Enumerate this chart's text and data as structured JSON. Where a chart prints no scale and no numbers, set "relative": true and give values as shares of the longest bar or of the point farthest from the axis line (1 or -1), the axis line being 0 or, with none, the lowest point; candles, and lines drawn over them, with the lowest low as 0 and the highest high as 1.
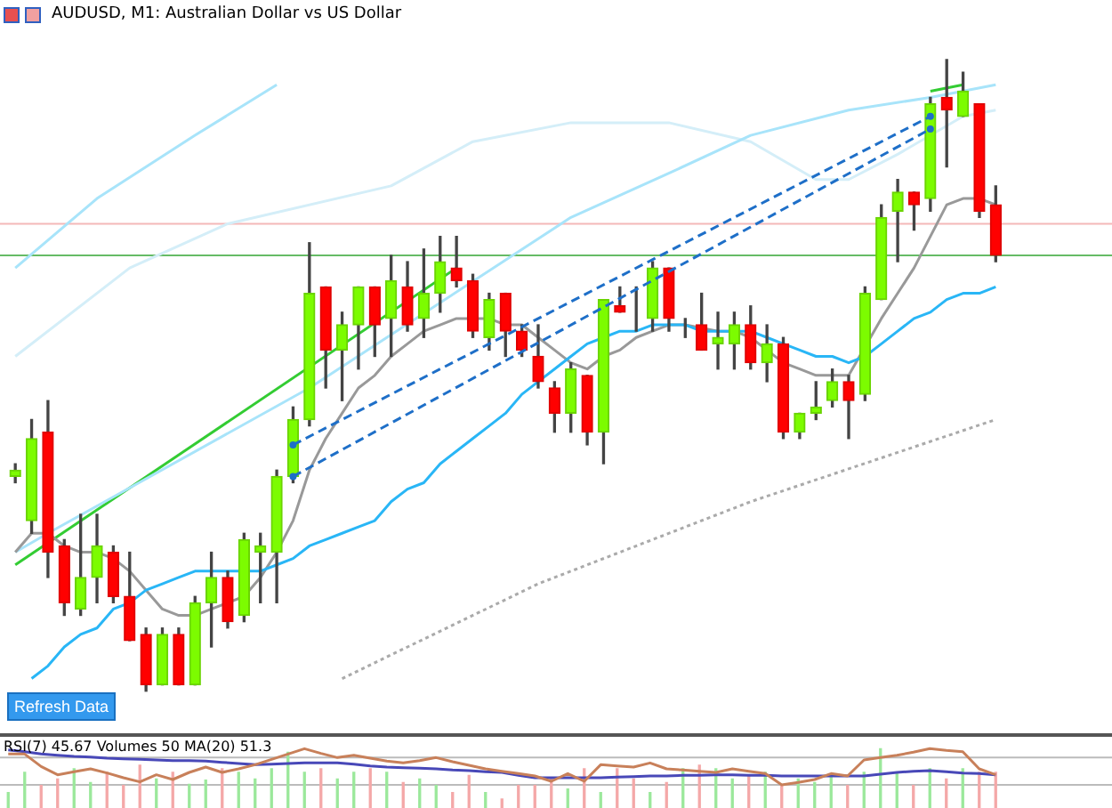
{
  "chart_data": [
    {
      "type": "candlestick",
      "title": "AUDUSD, M1:  Australian Dollar vs US Dollar",
      "relative": true,
      "tick_labels": false,
      "legend": false,
      "grid": false,
      "categories": [
        null,
        null,
        null,
        null,
        null,
        null,
        null,
        null,
        null,
        null,
        null,
        null,
        null,
        null,
        null,
        null,
        null,
        null,
        null,
        null,
        null,
        null,
        null,
        null,
        null,
        null,
        null,
        null,
        null,
        null,
        null,
        null,
        null,
        null,
        null,
        null,
        null,
        null,
        null,
        null,
        null,
        null,
        null,
        null,
        null,
        null,
        null,
        null,
        null,
        null,
        null,
        null,
        null,
        null,
        null,
        null,
        null,
        null,
        null,
        null,
        null
      ],
      "ohlc": [
        [
          0.34,
          0.36,
          0.33,
          0.35
        ],
        [
          0.27,
          0.43,
          0.25,
          0.4
        ],
        [
          0.41,
          0.46,
          0.18,
          0.22
        ],
        [
          0.23,
          0.24,
          0.12,
          0.14
        ],
        [
          0.13,
          0.28,
          0.12,
          0.18
        ],
        [
          0.18,
          0.28,
          0.14,
          0.23
        ],
        [
          0.22,
          0.23,
          0.14,
          0.15
        ],
        [
          0.15,
          0.22,
          0.08,
          0.08
        ],
        [
          0.09,
          0.1,
          0,
          0.01
        ],
        [
          0.01,
          0.1,
          0.01,
          0.09
        ],
        [
          0.09,
          0.1,
          0.01,
          0.01
        ],
        [
          0.01,
          0.15,
          0.01,
          0.14
        ],
        [
          0.14,
          0.22,
          0.07,
          0.18
        ],
        [
          0.18,
          0.19,
          0.1,
          0.11
        ],
        [
          0.12,
          0.25,
          0.11,
          0.24
        ],
        [
          0.22,
          0.25,
          0.14,
          0.23
        ],
        [
          0.22,
          0.35,
          0.14,
          0.34
        ],
        [
          0.34,
          0.45,
          0.33,
          0.43
        ],
        [
          0.43,
          0.71,
          0.42,
          0.63
        ],
        [
          0.64,
          0.64,
          0.48,
          0.54
        ],
        [
          0.54,
          0.6,
          0.46,
          0.58
        ],
        [
          0.58,
          0.64,
          0.51,
          0.64
        ],
        [
          0.64,
          0.64,
          0.53,
          0.58
        ],
        [
          0.59,
          0.69,
          0.53,
          0.65
        ],
        [
          0.64,
          0.68,
          0.57,
          0.58
        ],
        [
          0.59,
          0.7,
          0.56,
          0.63
        ],
        [
          0.63,
          0.72,
          0.6,
          0.68
        ],
        [
          0.67,
          0.72,
          0.64,
          0.65
        ],
        [
          0.65,
          0.66,
          0.56,
          0.57
        ],
        [
          0.56,
          0.63,
          0.54,
          0.62
        ],
        [
          0.63,
          0.63,
          0.53,
          0.57
        ],
        [
          0.57,
          0.58,
          0.53,
          0.54
        ],
        [
          0.53,
          0.58,
          0.48,
          0.49
        ],
        [
          0.48,
          0.49,
          0.41,
          0.44
        ],
        [
          0.44,
          0.52,
          0.41,
          0.51
        ],
        [
          0.5,
          0.5,
          0.39,
          0.41
        ],
        [
          0.41,
          0.62,
          0.36,
          0.62
        ],
        [
          0.61,
          0.64,
          0.6,
          0.6
        ],
        [
          0.6,
          0.64,
          0.57,
          0.6
        ],
        [
          0.59,
          0.68,
          0.57,
          0.67
        ],
        [
          0.67,
          0.67,
          0.57,
          0.59
        ],
        [
          0.58,
          0.59,
          0.56,
          0.58
        ],
        [
          0.58,
          0.63,
          0.54,
          0.54
        ],
        [
          0.55,
          0.6,
          0.51,
          0.56
        ],
        [
          0.55,
          0.6,
          0.51,
          0.58
        ],
        [
          0.58,
          0.61,
          0.51,
          0.52
        ],
        [
          0.52,
          0.58,
          0.49,
          0.55
        ],
        [
          0.55,
          0.56,
          0.4,
          0.41
        ],
        [
          0.41,
          0.44,
          0.4,
          0.44
        ],
        [
          0.44,
          0.49,
          0.43,
          0.45
        ],
        [
          0.46,
          0.51,
          0.45,
          0.49
        ],
        [
          0.49,
          0.5,
          0.4,
          0.46
        ],
        [
          0.47,
          0.64,
          0.46,
          0.63
        ],
        [
          0.62,
          0.77,
          0.62,
          0.75
        ],
        [
          0.76,
          0.81,
          0.68,
          0.79
        ],
        [
          0.79,
          0.79,
          0.73,
          0.77
        ],
        [
          0.78,
          0.94,
          0.76,
          0.93
        ],
        [
          0.94,
          1.0,
          0.83,
          0.92
        ],
        [
          0.91,
          0.98,
          0.91,
          0.95
        ],
        [
          0.93,
          0.93,
          0.75,
          0.76
        ],
        [
          0.77,
          0.8,
          0.68,
          0.69
        ]
      ],
      "series": [
        {
          "type": "line",
          "color": "#29b6f6",
          "values": [
            null,
            0.02,
            0.04,
            0.07,
            0.09,
            0.1,
            0.13,
            0.14,
            0.16,
            0.17,
            0.18,
            0.19,
            0.19,
            0.19,
            0.19,
            0.19,
            0.2,
            0.21,
            0.23,
            0.24,
            0.25,
            0.26,
            0.27,
            0.3,
            0.32,
            0.33,
            0.36,
            0.38,
            0.4,
            0.42,
            0.44,
            0.47,
            0.49,
            0.51,
            0.53,
            0.55,
            0.56,
            0.57,
            0.57,
            0.58,
            0.58,
            0.58,
            0.57,
            0.57,
            0.57,
            0.57,
            0.56,
            0.55,
            0.54,
            0.53,
            0.53,
            0.52,
            0.53,
            0.55,
            0.57,
            0.59,
            0.6,
            0.62,
            0.63,
            0.63,
            0.64
          ]
        },
        {
          "type": "line",
          "color": "#999999",
          "values": [
            0.22,
            0.25,
            0.25,
            0.23,
            0.22,
            0.22,
            0.21,
            0.19,
            0.16,
            0.13,
            0.12,
            0.12,
            0.13,
            0.14,
            0.15,
            0.18,
            0.22,
            0.27,
            0.35,
            0.4,
            0.44,
            0.48,
            0.5,
            0.53,
            0.55,
            0.57,
            0.58,
            0.59,
            0.59,
            0.59,
            0.58,
            0.58,
            0.56,
            0.54,
            0.52,
            0.51,
            0.53,
            0.54,
            0.56,
            0.57,
            0.58,
            0.58,
            null,
            0.57,
            0.57,
            0.56,
            0.54,
            0.52,
            0.51,
            0.5,
            0.5,
            0.5,
            null,
            0.59,
            0.63,
            0.67,
            0.72,
            0.77,
            0.78,
            0.78,
            0.77
          ]
        },
        {
          "type": "line",
          "color": "#a8e4fa",
          "values": [
            0.22,
            null,
            0.25,
            null,
            null,
            null,
            null,
            null,
            null,
            null,
            null,
            null,
            null,
            null,
            null,
            null,
            null,
            null,
            0.48,
            null,
            null,
            null,
            null,
            null,
            null,
            null,
            null,
            null,
            null,
            null,
            null,
            null,
            null,
            null,
            0.75,
            null,
            null,
            null,
            null,
            null,
            0.82,
            null,
            null,
            null,
            null,
            0.88,
            null,
            null,
            null,
            null,
            null,
            0.92,
            null,
            null,
            null,
            null,
            0.94,
            null,
            null,
            null,
            0.96
          ]
        },
        {
          "type": "line",
          "color": "#d4eef8",
          "values": [
            0.53,
            null,
            null,
            null,
            null,
            null,
            null,
            0.67,
            null,
            null,
            null,
            null,
            null,
            0.74,
            null,
            null,
            null,
            null,
            null,
            null,
            null,
            null,
            null,
            0.8,
            null,
            null,
            null,
            null,
            0.87,
            null,
            null,
            null,
            null,
            null,
            0.9,
            null,
            null,
            null,
            null,
            null,
            0.9,
            null,
            null,
            null,
            null,
            0.87,
            null,
            null,
            null,
            0.81,
            null,
            0.81,
            null,
            null,
            0.85,
            null,
            null,
            null,
            0.91,
            null,
            0.92
          ]
        },
        {
          "type": "line",
          "color": "#a8e4fa",
          "values": [
            0.67,
            null,
            null,
            null,
            null,
            0.78,
            null,
            null,
            null,
            null,
            null,
            0.88,
            null,
            null,
            null,
            null,
            0.96,
            null,
            null,
            null,
            null,
            null,
            null,
            null,
            null,
            null,
            null,
            null,
            null,
            null,
            null,
            null,
            null,
            null,
            null,
            null,
            null,
            null,
            null,
            null,
            null,
            null,
            null,
            null,
            null,
            null,
            null,
            null,
            null,
            null,
            null,
            null,
            null,
            null,
            null,
            null,
            null,
            null,
            null,
            null,
            null
          ]
        },
        {
          "type": "line",
          "color": "#aaaaaa",
          "line_style": "dotted",
          "values": [
            null,
            null,
            null,
            null,
            null,
            null,
            null,
            null,
            null,
            null,
            null,
            null,
            null,
            null,
            null,
            null,
            null,
            null,
            null,
            null,
            0.02,
            null,
            null,
            null,
            null,
            null,
            null,
            null,
            null,
            null,
            null,
            null,
            0.17,
            null,
            null,
            null,
            null,
            null,
            null,
            null,
            null,
            null,
            null,
            null,
            null,
            0.3,
            null,
            null,
            null,
            null,
            null,
            null,
            null,
            null,
            null,
            null,
            null,
            null,
            null,
            null,
            0.43
          ]
        },
        {
          "type": "line",
          "color": "#33cc33",
          "values": [
            0.2,
            null,
            null,
            null,
            null,
            null,
            null,
            null,
            null,
            null,
            null,
            null,
            null,
            null,
            null,
            null,
            null,
            null,
            null,
            null,
            null,
            null,
            null,
            null,
            null,
            null,
            null,
            0.67,
            null,
            null,
            null,
            null,
            null,
            null,
            null,
            null,
            null,
            null,
            null,
            null,
            null,
            null,
            null,
            null,
            null,
            null,
            null,
            null,
            null,
            null,
            null,
            null,
            null,
            null,
            null,
            null,
            null,
            null,
            null,
            null,
            null
          ]
        },
        {
          "type": "line",
          "color": "#33cc33",
          "values": [
            null,
            null,
            null,
            null,
            null,
            null,
            null,
            null,
            null,
            null,
            null,
            null,
            null,
            null,
            null,
            null,
            null,
            null,
            null,
            null,
            null,
            null,
            null,
            null,
            null,
            null,
            null,
            null,
            null,
            null,
            null,
            null,
            null,
            null,
            null,
            null,
            null,
            null,
            null,
            null,
            null,
            null,
            null,
            null,
            null,
            null,
            null,
            null,
            null,
            null,
            null,
            null,
            null,
            null,
            null,
            null,
            0.95,
            null,
            0.96,
            null,
            null
          ]
        },
        {
          "type": "line",
          "color": "#1e6fc8",
          "line_style": "dashed",
          "marker": "circle",
          "values": [
            null,
            null,
            null,
            null,
            null,
            null,
            null,
            null,
            null,
            null,
            null,
            null,
            null,
            null,
            null,
            null,
            null,
            0.39,
            null,
            null,
            null,
            null,
            null,
            null,
            null,
            null,
            null,
            null,
            null,
            null,
            null,
            null,
            null,
            null,
            null,
            null,
            null,
            null,
            null,
            null,
            null,
            null,
            null,
            null,
            null,
            null,
            null,
            null,
            null,
            null,
            null,
            null,
            null,
            null,
            null,
            null,
            0.91,
            null,
            null,
            null,
            null
          ]
        },
        {
          "type": "line",
          "color": "#1e6fc8",
          "line_style": "dashed",
          "marker": "circle",
          "values": [
            null,
            null,
            null,
            null,
            null,
            null,
            null,
            null,
            null,
            null,
            null,
            null,
            null,
            null,
            null,
            null,
            null,
            0.34,
            null,
            null,
            null,
            null,
            null,
            null,
            null,
            null,
            null,
            null,
            null,
            null,
            null,
            null,
            null,
            null,
            null,
            null,
            null,
            null,
            null,
            null,
            null,
            null,
            null,
            null,
            null,
            null,
            null,
            null,
            null,
            null,
            null,
            null,
            null,
            null,
            null,
            null,
            0.89,
            null,
            null,
            null,
            null
          ]
        }
      ],
      "ref_lines": [
        {
          "axis": "y",
          "value": 0.74,
          "color": "#f4b8b8"
        },
        {
          "axis": "y",
          "value": 0.69,
          "color": "#66bb66"
        }
      ],
      "annotations": [
        "Refresh Data"
      ]
    },
    {
      "type": "line",
      "title": "RSI(7) 45.67 Volumes 50 MA(20) 51.3",
      "relative": true,
      "tick_labels": false,
      "legend": false,
      "grid": false,
      "categories": [
        null,
        null,
        null,
        null,
        null,
        null,
        null,
        null,
        null,
        null,
        null,
        null,
        null,
        null,
        null,
        null,
        null,
        null,
        null,
        null,
        null,
        null,
        null,
        null,
        null,
        null,
        null,
        null,
        null,
        null,
        null,
        null,
        null,
        null,
        null,
        null,
        null,
        null,
        null,
        null,
        null,
        null,
        null,
        null,
        null,
        null,
        null,
        null,
        null,
        null,
        null,
        null,
        null,
        null,
        null,
        null,
        null,
        null,
        null,
        null,
        null
      ],
      "series": [
        {
          "type": "bar",
          "colors": [
            "#9be89b",
            "#9be89b",
            "#f4a8a8",
            "#f4a8a8",
            "#9be89b",
            "#9be89b",
            "#f4a8a8",
            "#f4a8a8",
            "#f4a8a8",
            "#9be89b",
            "#f4a8a8",
            "#9be89b",
            "#9be89b",
            "#f4a8a8",
            "#9be89b",
            "#9be89b",
            "#9be89b",
            "#9be89b",
            "#9be89b",
            "#f4a8a8",
            "#9be89b",
            "#9be89b",
            "#f4a8a8",
            "#9be89b",
            "#f4a8a8",
            "#9be89b",
            "#9be89b",
            "#f4a8a8",
            "#f4a8a8",
            "#9be89b",
            "#f4a8a8",
            "#f4a8a8",
            "#f4a8a8",
            "#f4a8a8",
            "#9be89b",
            "#f4a8a8",
            "#9be89b",
            "#f4a8a8",
            "#f4a8a8",
            "#9be89b",
            "#f4a8a8",
            "#9be89b",
            "#f4a8a8",
            "#9be89b",
            "#9be89b",
            "#f4a8a8",
            "#9be89b",
            "#f4a8a8",
            "#9be89b",
            "#9be89b",
            "#9be89b",
            "#f4a8a8",
            "#9be89b",
            "#9be89b",
            "#9be89b",
            "#f4a8a8",
            "#9be89b",
            "#f4a8a8",
            "#9be89b",
            "#f4a8a8",
            "#f4a8a8"
          ],
          "values": [
            0.26,
            0.6,
            0.38,
            0.49,
            0.66,
            0.43,
            0.6,
            0.38,
            0.72,
            0.49,
            0.6,
            0.4,
            0.47,
            0.66,
            0.6,
            0.49,
            0.66,
            0.94,
            0.6,
            0.66,
            0.49,
            0.6,
            0.66,
            0.6,
            0.43,
            0.49,
            0.38,
            0.26,
            0.55,
            0.26,
            0.15,
            0.38,
            0.38,
            0.49,
            0.32,
            0.66,
            0.26,
            0.66,
            0.49,
            0.26,
            0.43,
            0.66,
            0.72,
            0.66,
            0.49,
            0.55,
            0.6,
            0.38,
            0.49,
            0.43,
            0.55,
            0.38,
            0.6,
            1.0,
            0.6,
            0.38,
            0.66,
            0.49,
            0.66,
            0.6,
            0.6
          ]
        },
        {
          "type": "line",
          "color": "#c8805a",
          "values": [
            0.91,
            0.91,
            0.7,
            0.56,
            0.61,
            0.66,
            0.59,
            0.51,
            0.44,
            0.56,
            0.48,
            0.6,
            0.69,
            0.6,
            0.66,
            0.73,
            0.82,
            0.91,
            1.0,
            0.92,
            0.85,
            0.89,
            0.84,
            0.79,
            0.76,
            0.8,
            0.85,
            0.78,
            0.72,
            0.66,
            0.62,
            0.58,
            0.54,
            0.45,
            0.58,
            0.45,
            0.73,
            0.71,
            0.69,
            0.76,
            0.66,
            0.64,
            0.62,
            0.6,
            0.66,
            0.62,
            0.58,
            0.39,
            0.43,
            0.48,
            0.58,
            0.54,
            0.81,
            0.85,
            0.89,
            0.94,
            1.0,
            0.97,
            0.95,
            0.66,
            0.56
          ]
        },
        {
          "type": "line",
          "color": "#4848b8",
          "values": [
            0.98,
            0.95,
            0.91,
            0.89,
            0.87,
            0.86,
            0.84,
            0.83,
            0.82,
            0.81,
            0.8,
            0.8,
            0.79,
            0.77,
            0.75,
            0.73,
            0.74,
            0.75,
            0.76,
            0.76,
            0.76,
            0.74,
            0.71,
            0.69,
            0.68,
            0.67,
            0.66,
            0.64,
            0.63,
            0.61,
            0.6,
            0.55,
            0.51,
            0.51,
            0.51,
            0.51,
            0.51,
            0.52,
            0.53,
            0.54,
            0.54,
            0.55,
            0.55,
            0.56,
            0.56,
            0.55,
            0.55,
            0.54,
            0.54,
            0.54,
            0.54,
            0.54,
            0.54,
            0.57,
            0.6,
            0.62,
            0.63,
            0.61,
            0.59,
            0.58,
            0.56
          ]
        }
      ],
      "ref_lines": [
        {
          "axis": "y",
          "value": 0.85,
          "color": "#bbbbbb"
        },
        {
          "axis": "y",
          "value": 0.39,
          "color": "#bbbbbb"
        }
      ]
    }
  ]
}
